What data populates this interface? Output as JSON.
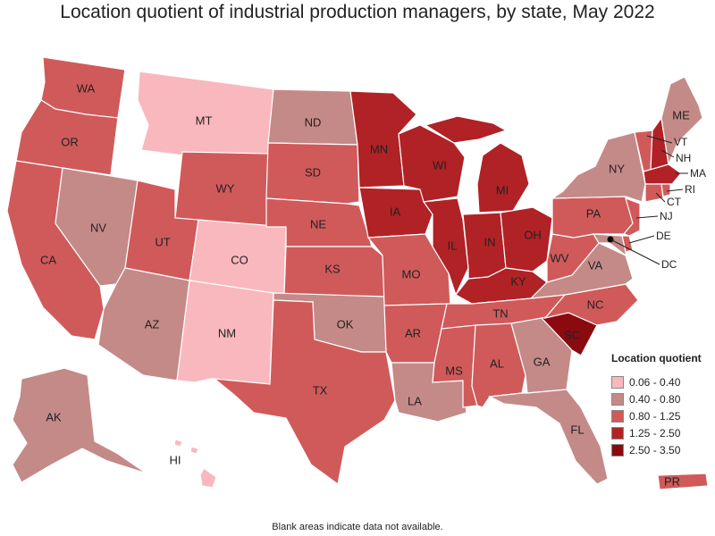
{
  "title": "Location quotient of industrial production managers, by state, May 2022",
  "footnote": "Blank areas indicate data not available.",
  "legend": {
    "title": "Location quotient",
    "classes": [
      {
        "label": "0.06 - 0.40",
        "color": "#f9b8bd"
      },
      {
        "label": "0.40 - 0.80",
        "color": "#c48a88"
      },
      {
        "label": "0.80 - 1.25",
        "color": "#d05a5a"
      },
      {
        "label": "1.25 - 2.50",
        "color": "#b02226"
      },
      {
        "label": "2.50 - 3.50",
        "color": "#8b0a10"
      }
    ]
  },
  "states": {
    "WA": {
      "label": "WA",
      "class": 2
    },
    "OR": {
      "label": "OR",
      "class": 2
    },
    "CA": {
      "label": "CA",
      "class": 2
    },
    "NV": {
      "label": "NV",
      "class": 1
    },
    "ID": {
      "label": "",
      "class": null
    },
    "MT": {
      "label": "MT",
      "class": 0
    },
    "WY": {
      "label": "WY",
      "class": 2
    },
    "UT": {
      "label": "UT",
      "class": 2
    },
    "AZ": {
      "label": "AZ",
      "class": 1
    },
    "CO": {
      "label": "CO",
      "class": 0
    },
    "NM": {
      "label": "NM",
      "class": 0
    },
    "ND": {
      "label": "ND",
      "class": 1
    },
    "SD": {
      "label": "SD",
      "class": 2
    },
    "NE": {
      "label": "NE",
      "class": 2
    },
    "KS": {
      "label": "KS",
      "class": 2
    },
    "OK": {
      "label": "OK",
      "class": 1
    },
    "TX": {
      "label": "TX",
      "class": 2
    },
    "MN": {
      "label": "MN",
      "class": 3
    },
    "IA": {
      "label": "IA",
      "class": 3
    },
    "MO": {
      "label": "MO",
      "class": 2
    },
    "AR": {
      "label": "AR",
      "class": 2
    },
    "LA": {
      "label": "LA",
      "class": 1
    },
    "WI": {
      "label": "WI",
      "class": 3
    },
    "IL": {
      "label": "IL",
      "class": 3
    },
    "MI": {
      "label": "MI",
      "class": 3
    },
    "IN": {
      "label": "IN",
      "class": 3
    },
    "OH": {
      "label": "OH",
      "class": 3
    },
    "KY": {
      "label": "KY",
      "class": 3
    },
    "TN": {
      "label": "TN",
      "class": 2
    },
    "MS": {
      "label": "MS",
      "class": 2
    },
    "AL": {
      "label": "AL",
      "class": 2
    },
    "GA": {
      "label": "GA",
      "class": 1
    },
    "FL": {
      "label": "FL",
      "class": 1
    },
    "SC": {
      "label": "SC",
      "class": 4
    },
    "NC": {
      "label": "NC",
      "class": 2
    },
    "VA": {
      "label": "VA",
      "class": 1
    },
    "WV": {
      "label": "WV",
      "class": 2
    },
    "PA": {
      "label": "PA",
      "class": 2
    },
    "NY": {
      "label": "NY",
      "class": 1
    },
    "VT": {
      "label": "VT",
      "class": 2
    },
    "NH": {
      "label": "NH",
      "class": 3
    },
    "ME": {
      "label": "ME",
      "class": 1
    },
    "MA": {
      "label": "MA",
      "class": 3
    },
    "RI": {
      "label": "RI",
      "class": 2
    },
    "CT": {
      "label": "CT",
      "class": 2
    },
    "NJ": {
      "label": "NJ",
      "class": 2
    },
    "DE": {
      "label": "DE",
      "class": 2
    },
    "MD": {
      "label": "",
      "class": 1
    },
    "DC": {
      "label": "DC",
      "class": null
    },
    "AK": {
      "label": "AK",
      "class": 1
    },
    "HI": {
      "label": "HI",
      "class": 0
    },
    "PR": {
      "label": "PR",
      "class": 2
    }
  }
}
